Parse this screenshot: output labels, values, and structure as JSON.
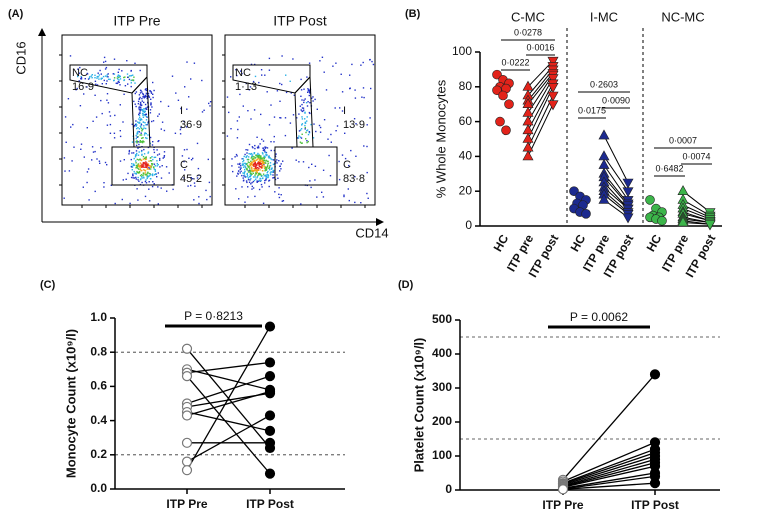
{
  "chart_data": [
    {
      "type": "flow",
      "panel_label": "(A)",
      "x_label": "CD14",
      "y_label": "CD16",
      "plots": [
        {
          "title": "ITP Pre",
          "gates": [
            "NC",
            "I",
            "C"
          ],
          "values": [
            16.9,
            36.9,
            45.2
          ],
          "value_labels": [
            "16·9",
            "36·9",
            "45·2"
          ]
        },
        {
          "title": "ITP Post",
          "gates": [
            "NC",
            "I",
            "C"
          ],
          "values": [
            1.13,
            13.9,
            83.8
          ],
          "value_labels": [
            "1·13",
            "13·9",
            "83·8"
          ]
        }
      ]
    },
    {
      "type": "paired-dot",
      "panel_label": "(B)",
      "y_label": "% Whole Monocytes",
      "ylim": [
        0,
        100
      ],
      "yticks": [
        0,
        20,
        40,
        60,
        80,
        100
      ],
      "groups": [
        {
          "title": "C-MC",
          "color": "#e2231a",
          "categories": [
            "HC",
            "ITP pre",
            "ITP post"
          ],
          "values": [
            [
              87,
              84,
              82,
              80,
              79,
              78,
              75,
              70,
              60,
              55
            ],
            [
              80,
              75,
              72,
              70,
              65,
              60,
              55,
              50,
              45,
              40
            ],
            [
              95,
              92,
              90,
              88,
              87,
              85,
              82,
              80,
              75,
              70
            ]
          ],
          "p_values": [
            0.0278,
            0.0222,
            0.0016
          ],
          "p_value_labels": [
            "0·0278",
            "0·0222",
            "0·0016"
          ]
        },
        {
          "title": "I-MC",
          "color": "#1c2a8f",
          "categories": [
            "HC",
            "ITP pre",
            "ITP post"
          ],
          "values": [
            [
              20,
              17,
              15,
              13,
              12,
              10,
              8,
              7
            ],
            [
              52,
              40,
              35,
              30,
              28,
              25,
              22,
              20,
              18,
              15
            ],
            [
              25,
              20,
              15,
              13,
              12,
              10,
              10,
              8,
              7,
              5
            ]
          ],
          "p_values": [
            0.2603,
            0.0175,
            0.009
          ],
          "p_value_labels": [
            "0·2603",
            "0·0175",
            "0·0090"
          ]
        },
        {
          "title": "NC-MC",
          "color": "#3cb54a",
          "categories": [
            "HC",
            "ITP pre",
            "ITP post"
          ],
          "values": [
            [
              15,
              10,
              8,
              6,
              5,
              5,
              4,
              3
            ],
            [
              20,
              15,
              12,
              10,
              8,
              7,
              5,
              4,
              3,
              2
            ],
            [
              8,
              6,
              5,
              4,
              3,
              3,
              2,
              2,
              1,
              1
            ]
          ],
          "p_values": [
            0.0007,
            0.6482,
            0.0074
          ],
          "p_value_labels": [
            "0·0007",
            "0·6482",
            "0·0074"
          ]
        }
      ]
    },
    {
      "type": "paired-line",
      "panel_label": "(C)",
      "y_label": "Monocyte Count (x10⁹/l)",
      "categories": [
        "ITP Pre",
        "ITP Post"
      ],
      "marker_colors": [
        "#ffffff",
        "#000000"
      ],
      "values": [
        [
          0.82,
          0.7,
          0.68,
          0.66,
          0.5,
          0.48,
          0.45,
          0.43,
          0.27,
          0.16,
          0.11
        ],
        [
          0.24,
          0.58,
          0.74,
          0.09,
          0.66,
          0.56,
          0.34,
          0.57,
          0.27,
          0.43,
          0.95
        ]
      ],
      "ylim": [
        0,
        1
      ],
      "yticks": [
        {
          "value": 0,
          "label": "0.0"
        },
        0.2,
        0.4,
        0.6,
        0.8,
        {
          "value": 1,
          "label": "1.0"
        }
      ],
      "ref_lines": [
        0.2,
        0.8
      ],
      "p_value": 0.8213,
      "p_value_label": "P = 0·8213"
    },
    {
      "type": "paired-line",
      "panel_label": "(D)",
      "y_label": "Platelet Count (x10⁹/l)",
      "categories": [
        "ITP Pre",
        "ITP Post"
      ],
      "marker_colors": [
        "#ffffff",
        "#000000"
      ],
      "values": [
        [
          30,
          25,
          20,
          18,
          15,
          12,
          10,
          8,
          5,
          3,
          2
        ],
        [
          340,
          140,
          120,
          110,
          100,
          90,
          80,
          70,
          50,
          40,
          20
        ]
      ],
      "ylim": [
        0,
        500
      ],
      "yticks": [
        0,
        100,
        200,
        300,
        400,
        500
      ],
      "ref_lines": [
        150,
        450
      ],
      "p_value": 0.0062,
      "p_value_label": "P = 0.0062"
    }
  ]
}
